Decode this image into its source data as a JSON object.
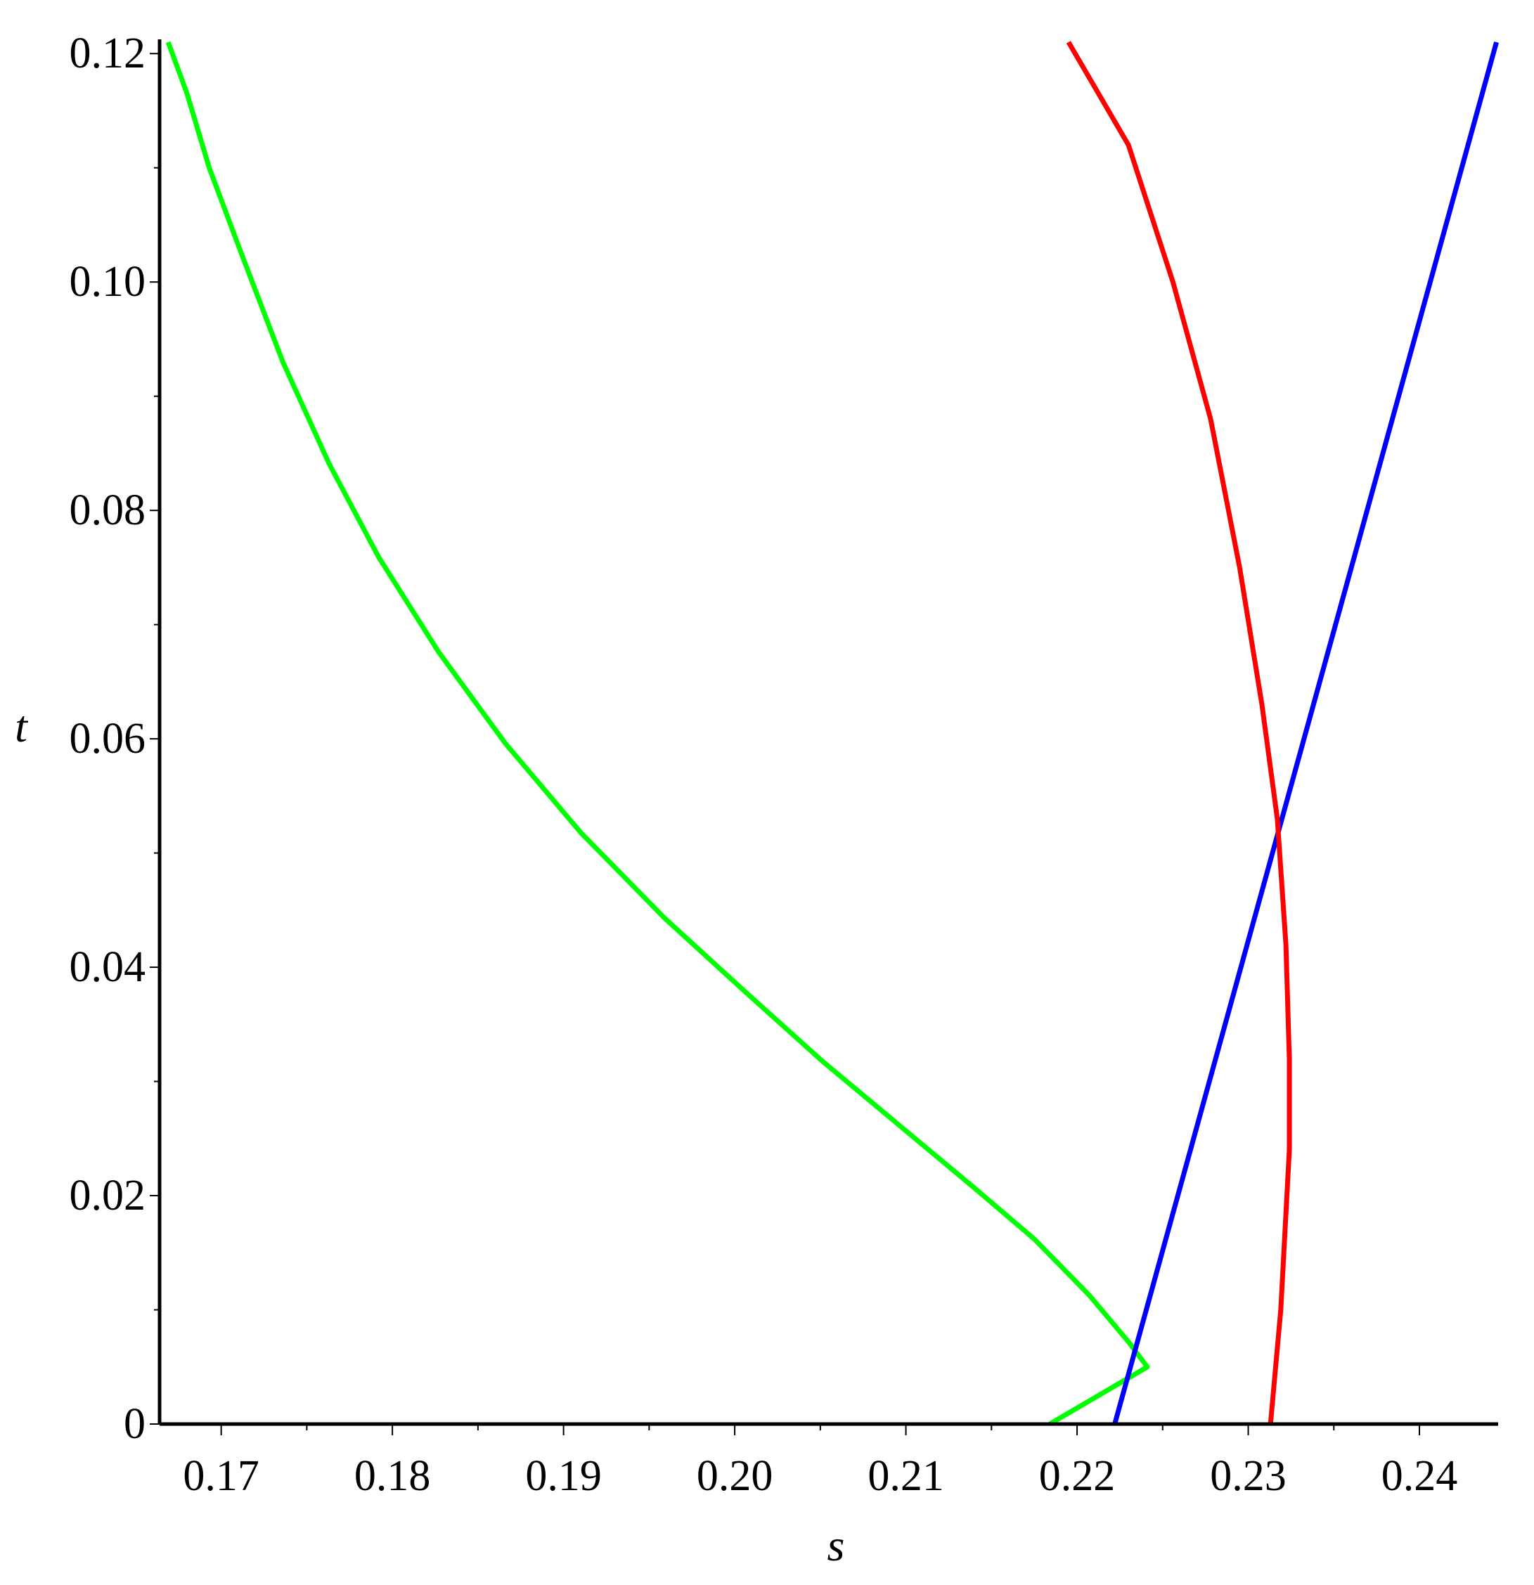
{
  "chart_data": {
    "type": "line",
    "title": "",
    "xlabel": "s",
    "ylabel": "t",
    "xlim": [
      0.1664,
      0.2446
    ],
    "ylim": [
      0,
      0.121
    ],
    "grid": false,
    "legend": "none",
    "x_ticks": [
      {
        "value": 0.17,
        "label": "0.17"
      },
      {
        "value": 0.18,
        "label": "0.18"
      },
      {
        "value": 0.19,
        "label": "0.19"
      },
      {
        "value": 0.2,
        "label": "0.20"
      },
      {
        "value": 0.21,
        "label": "0.21"
      },
      {
        "value": 0.22,
        "label": "0.22"
      },
      {
        "value": 0.23,
        "label": "0.23"
      },
      {
        "value": 0.24,
        "label": "0.24"
      }
    ],
    "y_ticks": [
      {
        "value": 0,
        "label": "0"
      },
      {
        "value": 0.02,
        "label": "0.02"
      },
      {
        "value": 0.04,
        "label": "0.04"
      },
      {
        "value": 0.06,
        "label": "0.06"
      },
      {
        "value": 0.08,
        "label": "0.08"
      },
      {
        "value": 0.1,
        "label": "0.10"
      },
      {
        "value": 0.12,
        "label": "0.12"
      }
    ],
    "series": [
      {
        "color": "#00ff00",
        "points": [
          [
            0.1669,
            0.121
          ],
          [
            0.168,
            0.1165
          ],
          [
            0.1693,
            0.11
          ],
          [
            0.1712,
            0.1024
          ],
          [
            0.1736,
            0.093
          ],
          [
            0.1763,
            0.0841
          ],
          [
            0.1792,
            0.0759
          ],
          [
            0.1827,
            0.0676
          ],
          [
            0.1866,
            0.0596
          ],
          [
            0.191,
            0.0518
          ],
          [
            0.1959,
            0.0443
          ],
          [
            0.2005,
            0.038
          ],
          [
            0.2051,
            0.0318
          ],
          [
            0.2099,
            0.0258
          ],
          [
            0.2139,
            0.0208
          ],
          [
            0.2175,
            0.0162
          ],
          [
            0.2207,
            0.0113
          ],
          [
            0.223,
            0.0072
          ],
          [
            0.2241,
            0.005
          ],
          [
            0.2184,
            0.0
          ]
        ]
      },
      {
        "color": "#0000ff",
        "points": [
          [
            0.2222,
            0.0
          ],
          [
            0.2445,
            0.121
          ]
        ]
      },
      {
        "color": "#ff0000",
        "points": [
          [
            0.2313,
            0.0
          ],
          [
            0.2319,
            0.01
          ],
          [
            0.2324,
            0.024
          ],
          [
            0.2324,
            0.032
          ],
          [
            0.2322,
            0.042
          ],
          [
            0.2317,
            0.053
          ],
          [
            0.2308,
            0.063
          ],
          [
            0.2295,
            0.075
          ],
          [
            0.2278,
            0.088
          ],
          [
            0.2256,
            0.1
          ],
          [
            0.223,
            0.112
          ],
          [
            0.2195,
            0.121
          ]
        ]
      }
    ]
  }
}
